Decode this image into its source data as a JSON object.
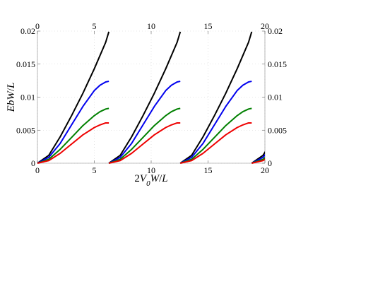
{
  "chart_data": {
    "type": "line",
    "xlabel": "2V0W/L",
    "ylabel": "EbW/L",
    "xlim": [
      0,
      20
    ],
    "ylim": [
      0,
      0.02
    ],
    "x_ticks": [
      0,
      5,
      10,
      15,
      20
    ],
    "x_tick_labels": [
      "0",
      "5",
      "10",
      "15",
      "20"
    ],
    "y_ticks": [
      0,
      0.005,
      0.01,
      0.015,
      0.02
    ],
    "y_tick_labels": [
      "0",
      "0.005",
      "0.01",
      "0.015",
      "0.02"
    ],
    "grid": "dotted",
    "period": 6.28,
    "colors": {
      "black": "#000000",
      "blue": "#0000ee",
      "green": "#008000",
      "red": "#ee0000"
    },
    "series": [
      {
        "color": "black",
        "x": [
          0,
          1,
          2,
          3,
          4,
          5,
          6,
          6.28
        ],
        "y": [
          0,
          0.0012,
          0.004,
          0.0072,
          0.0106,
          0.0143,
          0.0183,
          0.0199
        ]
      },
      {
        "color": "blue",
        "x": [
          0,
          1,
          2,
          3,
          4,
          5,
          5.5,
          6,
          6.28
        ],
        "y": [
          0,
          0.0009,
          0.003,
          0.0058,
          0.0086,
          0.011,
          0.0118,
          0.0123,
          0.0124
        ]
      },
      {
        "color": "green",
        "x": [
          0,
          1,
          2,
          3,
          4,
          5,
          5.5,
          6,
          6.28
        ],
        "y": [
          0,
          0.0006,
          0.0021,
          0.0039,
          0.0057,
          0.0072,
          0.0078,
          0.0082,
          0.0083
        ]
      },
      {
        "color": "red",
        "x": [
          0,
          1,
          2,
          3,
          4,
          5,
          5.5,
          6,
          6.28
        ],
        "y": [
          0,
          0.0004,
          0.0015,
          0.0029,
          0.0043,
          0.0054,
          0.0058,
          0.0061,
          0.0061
        ]
      }
    ]
  }
}
